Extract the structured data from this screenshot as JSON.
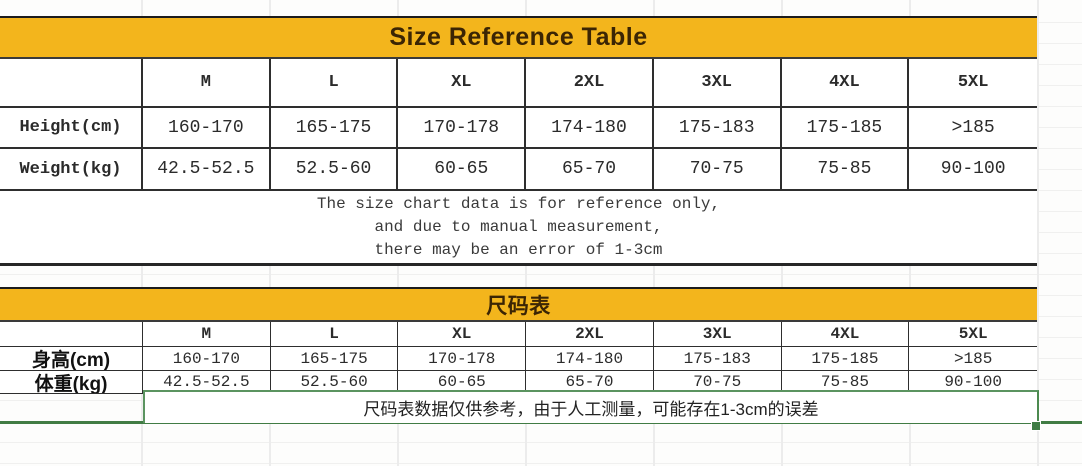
{
  "colors": {
    "banner_yellow": "#f3b51c",
    "banner_text": "#3b2504",
    "table_border": "#2e2e2e",
    "selection_green": "#417c44",
    "gridline": "#ececec"
  },
  "table1": {
    "title": "Size Reference Table",
    "columns": [
      "M",
      "L",
      "XL",
      "2XL",
      "3XL",
      "4XL",
      "5XL"
    ],
    "rows": [
      {
        "label": "Height(cm)",
        "values": [
          "160-170",
          "165-175",
          "170-178",
          "174-180",
          "175-183",
          "175-185",
          ">185"
        ]
      },
      {
        "label": "Weight(kg)",
        "values": [
          "42.5-52.5",
          "52.5-60",
          "60-65",
          "65-70",
          "70-75",
          "75-85",
          "90-100"
        ]
      }
    ],
    "note_lines": [
      "The size chart data is for reference only,",
      "and due to manual measurement,",
      "there may be an error of 1-3cm"
    ]
  },
  "table2": {
    "title": "尺码表",
    "columns": [
      "M",
      "L",
      "XL",
      "2XL",
      "3XL",
      "4XL",
      "5XL"
    ],
    "rows": [
      {
        "label": "身高(cm)",
        "values": [
          "160-170",
          "165-175",
          "170-178",
          "174-180",
          "175-183",
          "175-185",
          ">185"
        ]
      },
      {
        "label": "体重(kg)",
        "values": [
          "42.5-52.5",
          "52.5-60",
          "60-65",
          "65-70",
          "70-75",
          "75-85",
          "90-100"
        ]
      }
    ],
    "note": "尺码表数据仅供参考，由于人工测量，可能存在1-3cm的误差"
  },
  "chart_data": {
    "type": "table",
    "title": "Size Reference Table / 尺码表",
    "categories": [
      "M",
      "L",
      "XL",
      "2XL",
      "3XL",
      "4XL",
      "5XL"
    ],
    "series": [
      {
        "name": "Height(cm)",
        "values": [
          "160-170",
          "165-175",
          "170-178",
          "174-180",
          "175-183",
          "175-185",
          ">185"
        ]
      },
      {
        "name": "Weight(kg)",
        "values": [
          "42.5-52.5",
          "52.5-60",
          "60-65",
          "65-70",
          "70-75",
          "75-85",
          "90-100"
        ]
      }
    ]
  }
}
